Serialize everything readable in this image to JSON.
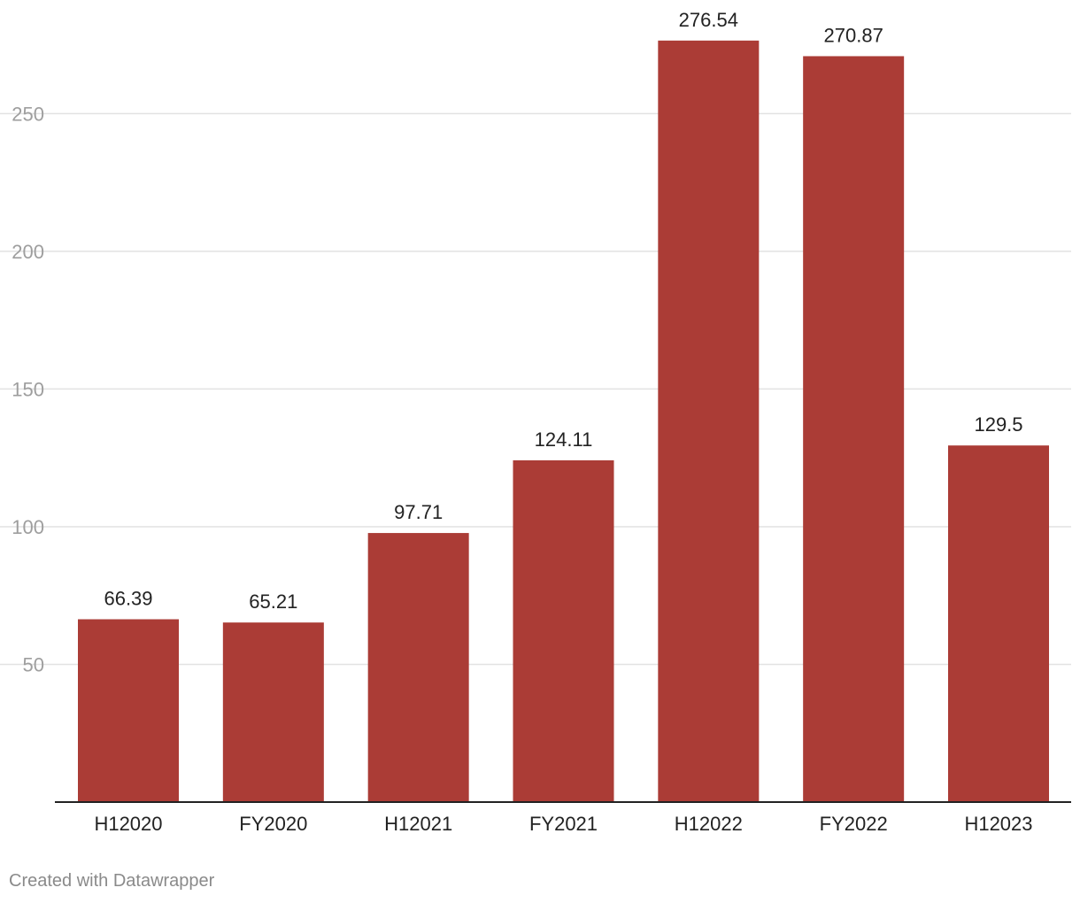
{
  "chart_data": {
    "type": "bar",
    "categories": [
      "H12020",
      "FY2020",
      "H12021",
      "FY2021",
      "H12022",
      "FY2022",
      "H12023"
    ],
    "values": [
      66.39,
      65.21,
      97.71,
      124.11,
      276.54,
      270.87,
      129.5
    ],
    "value_labels": [
      "66.39",
      "65.21",
      "97.71",
      "124.11",
      "276.54",
      "270.87",
      "129.5"
    ],
    "y_ticks": [
      50,
      100,
      150,
      200,
      250
    ],
    "y_tick_labels": [
      "50",
      "100",
      "150",
      "200",
      "250"
    ],
    "ylim": [
      0,
      285
    ],
    "title": "",
    "xlabel": "",
    "ylabel": "",
    "grid": true,
    "bar_color": "#ab3c36"
  },
  "footer": {
    "credit": "Created with Datawrapper"
  }
}
